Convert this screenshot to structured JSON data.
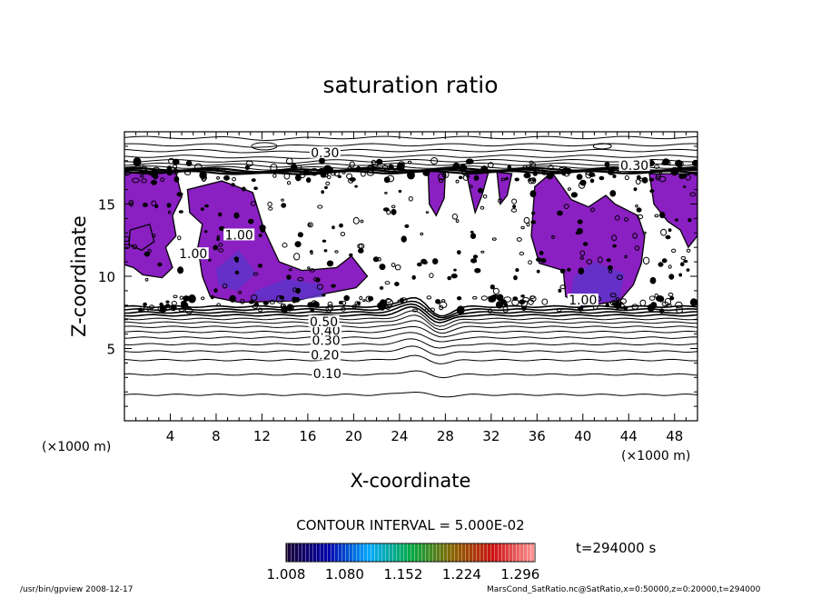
{
  "chart_data": {
    "type": "contour",
    "title": "saturation ratio",
    "xlabel": "X-coordinate",
    "ylabel": "Z-coordinate",
    "x_unit_left": "(×1000 m)",
    "x_unit_right": "(×1000 m)",
    "xlim": [
      0,
      50
    ],
    "ylim": [
      0,
      20
    ],
    "x_ticks": [
      "4",
      "8",
      "12",
      "16",
      "20",
      "24",
      "28",
      "32",
      "36",
      "40",
      "44",
      "48"
    ],
    "x_tick_values": [
      4,
      8,
      12,
      16,
      20,
      24,
      28,
      32,
      36,
      40,
      44,
      48
    ],
    "y_ticks": [
      "5",
      "10",
      "15"
    ],
    "y_tick_values": [
      5,
      10,
      15
    ],
    "grid": false,
    "contour_labels": [
      {
        "text": "0.30",
        "x": 17.5,
        "z": 18.5
      },
      {
        "text": "0.30",
        "x": 44.5,
        "z": 17.6
      },
      {
        "text": "0.10",
        "x": 17.7,
        "z": 3.2
      },
      {
        "text": "0.20",
        "x": 17.5,
        "z": 4.5
      },
      {
        "text": "0.30",
        "x": 17.6,
        "z": 5.5
      },
      {
        "text": "0.40",
        "x": 17.6,
        "z": 6.2
      },
      {
        "text": "0.50",
        "x": 17.4,
        "z": 6.8
      },
      {
        "text": "1.00",
        "x": 6.0,
        "z": 11.5
      },
      {
        "text": "1.00",
        "x": 10.0,
        "z": 12.8
      },
      {
        "text": "1.00",
        "x": 40.0,
        "z": 8.3
      }
    ],
    "contour_interval_label": "CONTOUR INTERVAL = 5.000E-02",
    "time_label": "t=294000 s",
    "colorbar": {
      "tick_labels": [
        "1.008",
        "1.080",
        "1.152",
        "1.224",
        "1.296"
      ],
      "tick_values": [
        1.008,
        1.08,
        1.152,
        1.224,
        1.296
      ],
      "range": [
        1.008,
        1.296
      ],
      "colors": [
        "#1a0033",
        "#0000aa",
        "#00aaff",
        "#00aa44",
        "#886600",
        "#cc1111",
        "#ff9999"
      ]
    },
    "fill_color": "#8a1fc2",
    "fill_dark_color": "#5a35c8"
  },
  "footer": {
    "left": "/usr/bin/gpview  2008-12-17",
    "right": "MarsCond_SatRatio.nc@SatRatio,x=0:50000,z=0:20000,t=294000"
  }
}
